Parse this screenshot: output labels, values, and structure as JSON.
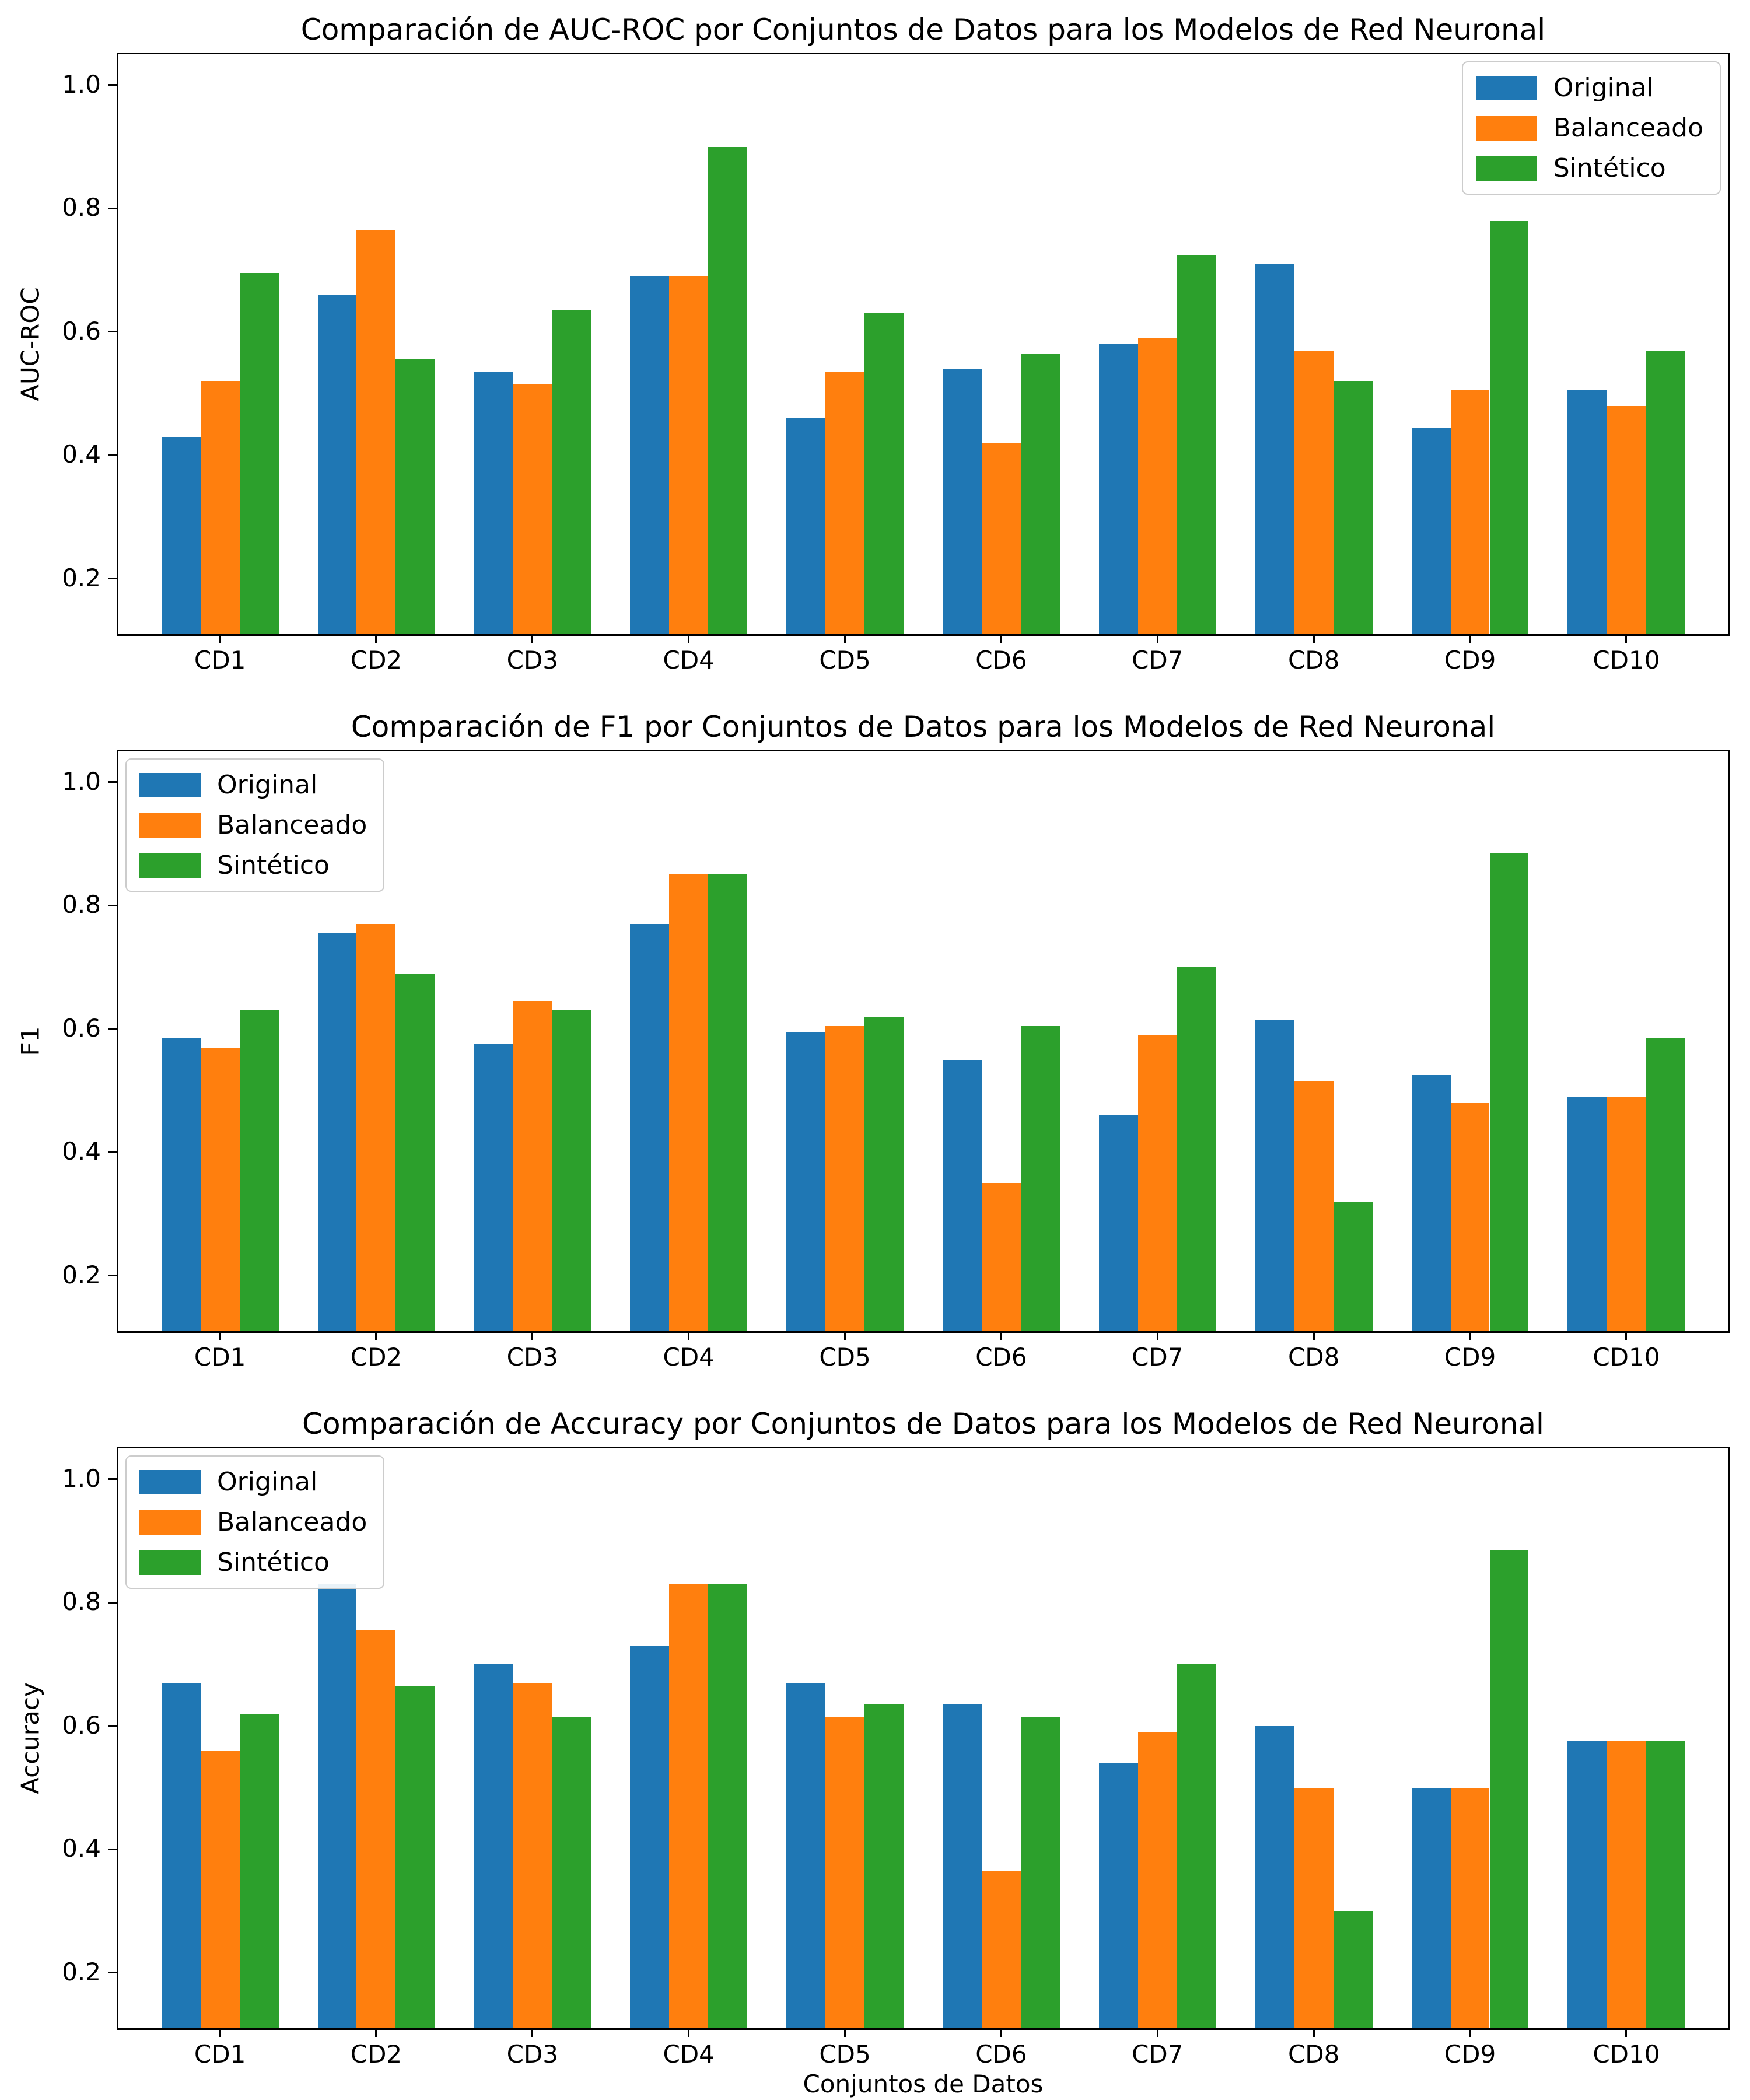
{
  "figure": {
    "background_color": "#ffffff",
    "text_color": "#000000"
  },
  "legend": {
    "entries": [
      "Original",
      "Balanceado",
      "Sintético"
    ]
  },
  "colors": {
    "original": "#1f77b4",
    "balanceado": "#ff7f0e",
    "sintetico": "#2ca02c",
    "legend_border": "#cccccc",
    "axis": "#000000"
  },
  "chart_data": [
    {
      "type": "bar",
      "title": "Comparación de AUC-ROC por Conjuntos de Datos para los Modelos de Red Neuronal",
      "ylabel": "AUC-ROC",
      "xlabel": "",
      "categories": [
        "CD1",
        "CD2",
        "CD3",
        "CD4",
        "CD5",
        "CD6",
        "CD7",
        "CD8",
        "CD9",
        "CD10"
      ],
      "series": [
        {
          "name": "Original",
          "color": "#1f77b4",
          "values": [
            0.43,
            0.66,
            0.535,
            0.69,
            0.46,
            0.54,
            0.58,
            0.71,
            0.445,
            0.505
          ]
        },
        {
          "name": "Balanceado",
          "color": "#ff7f0e",
          "values": [
            0.52,
            0.765,
            0.515,
            0.69,
            0.535,
            0.42,
            0.59,
            0.57,
            0.505,
            0.48
          ]
        },
        {
          "name": "Sintético",
          "color": "#2ca02c",
          "values": [
            0.695,
            0.555,
            0.635,
            0.9,
            0.63,
            0.565,
            0.725,
            0.52,
            0.78,
            0.57
          ]
        }
      ],
      "ylim": [
        0.11,
        1.05
      ],
      "yticks": [
        0.2,
        0.4,
        0.6,
        0.8,
        1.0
      ],
      "grid": false,
      "legend_position": "top-right"
    },
    {
      "type": "bar",
      "title": "Comparación de F1 por Conjuntos de Datos para los Modelos de Red Neuronal",
      "ylabel": "F1",
      "xlabel": "",
      "categories": [
        "CD1",
        "CD2",
        "CD3",
        "CD4",
        "CD5",
        "CD6",
        "CD7",
        "CD8",
        "CD9",
        "CD10"
      ],
      "series": [
        {
          "name": "Original",
          "color": "#1f77b4",
          "values": [
            0.585,
            0.755,
            0.575,
            0.77,
            0.595,
            0.55,
            0.46,
            0.615,
            0.525,
            0.49
          ]
        },
        {
          "name": "Balanceado",
          "color": "#ff7f0e",
          "values": [
            0.57,
            0.77,
            0.645,
            0.85,
            0.605,
            0.35,
            0.59,
            0.515,
            0.48,
            0.49
          ]
        },
        {
          "name": "Sintético",
          "color": "#2ca02c",
          "values": [
            0.63,
            0.69,
            0.63,
            0.85,
            0.62,
            0.605,
            0.7,
            0.32,
            0.885,
            0.585
          ]
        }
      ],
      "ylim": [
        0.11,
        1.05
      ],
      "yticks": [
        0.2,
        0.4,
        0.6,
        0.8,
        1.0
      ],
      "grid": false,
      "legend_position": "top-left"
    },
    {
      "type": "bar",
      "title": "Comparación de Accuracy por Conjuntos de Datos para los Modelos de Red Neuronal",
      "ylabel": "Accuracy",
      "xlabel": "Conjuntos de Datos",
      "categories": [
        "CD1",
        "CD2",
        "CD3",
        "CD4",
        "CD5",
        "CD6",
        "CD7",
        "CD8",
        "CD9",
        "CD10"
      ],
      "series": [
        {
          "name": "Original",
          "color": "#1f77b4",
          "values": [
            0.67,
            0.83,
            0.7,
            0.73,
            0.67,
            0.635,
            0.54,
            0.6,
            0.5,
            0.575
          ]
        },
        {
          "name": "Balanceado",
          "color": "#ff7f0e",
          "values": [
            0.56,
            0.755,
            0.67,
            0.83,
            0.615,
            0.365,
            0.59,
            0.5,
            0.5,
            0.575
          ]
        },
        {
          "name": "Sintético",
          "color": "#2ca02c",
          "values": [
            0.62,
            0.665,
            0.615,
            0.83,
            0.635,
            0.615,
            0.7,
            0.3,
            0.885,
            0.575
          ]
        }
      ],
      "ylim": [
        0.11,
        1.05
      ],
      "yticks": [
        0.2,
        0.4,
        0.6,
        0.8,
        1.0
      ],
      "grid": false,
      "legend_position": "top-left"
    }
  ]
}
